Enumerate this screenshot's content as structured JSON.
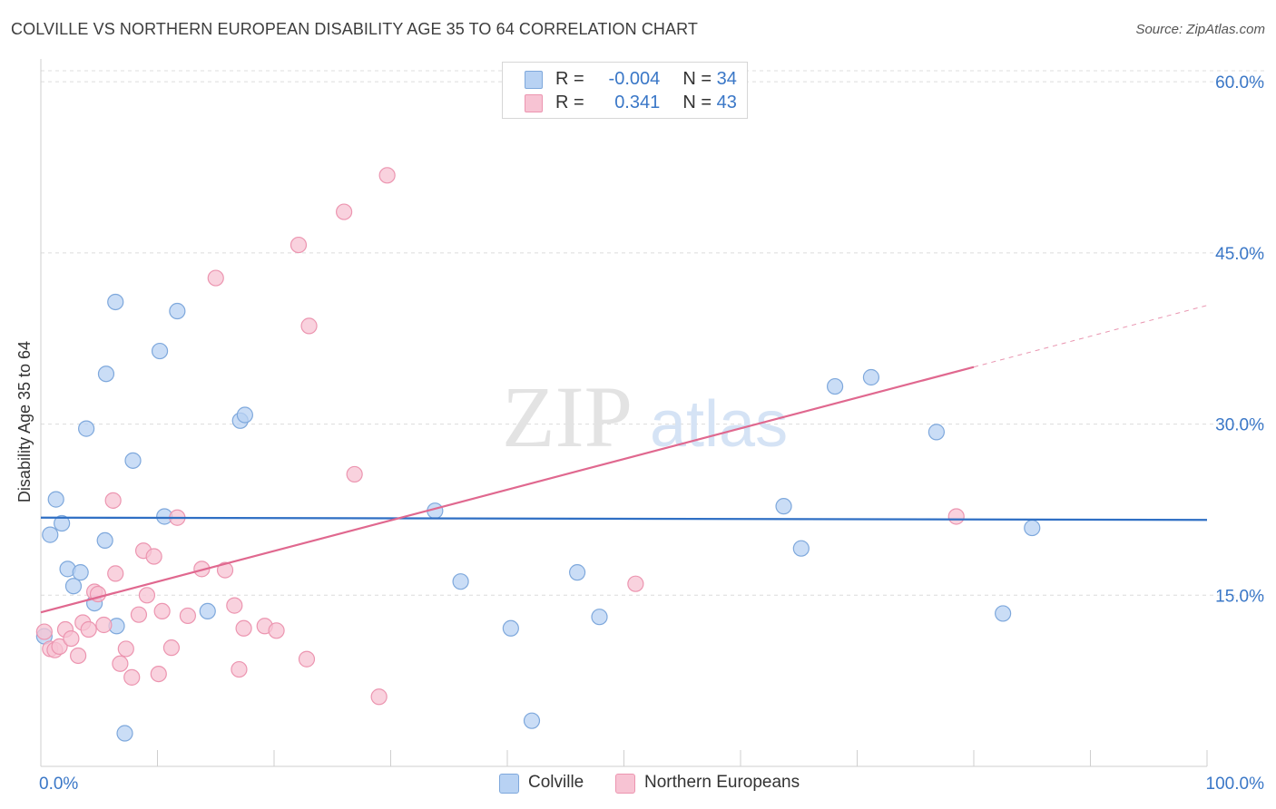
{
  "header": {
    "title": "COLVILLE VS NORTHERN EUROPEAN DISABILITY AGE 35 TO 64 CORRELATION CHART",
    "source": "Source: ZipAtlas.com"
  },
  "legend": {
    "rows": [
      {
        "r_label": "R =",
        "r_value": "-0.004",
        "n_label": "N =",
        "n_value": "34"
      },
      {
        "r_label": "R =",
        "r_value": "0.341",
        "n_label": "N =",
        "n_value": "43"
      }
    ]
  },
  "bottom_legend": [
    "Colville",
    "Northern Europeans"
  ],
  "watermark": {
    "zip": "ZIP",
    "atlas": "atlas"
  },
  "colors": {
    "blue_fill": "#b8d2f3",
    "blue_stroke": "#7ea8dc",
    "blue_line": "#2f6fc4",
    "pink_fill": "#f7c3d3",
    "pink_stroke": "#ec95b0",
    "pink_line": "#e0688f",
    "tick_label": "#3a77c7",
    "grid": "#dcdcdc"
  },
  "chart_data": {
    "type": "scatter",
    "title": "COLVILLE VS NORTHERN EUROPEAN DISABILITY AGE 35 TO 64 CORRELATION CHART",
    "xlabel": "",
    "ylabel": "Disability Age 35 to 64",
    "xlim": [
      0,
      100
    ],
    "ylim": [
      0,
      62
    ],
    "x_tick_labels": [
      "0.0%",
      "100.0%"
    ],
    "y_ticks": [
      15,
      30,
      45,
      60
    ],
    "y_tick_labels": [
      "15.0%",
      "30.0%",
      "45.0%",
      "60.0%"
    ],
    "grid": "horizontal dashed",
    "series": [
      {
        "name": "Colville",
        "r": -0.004,
        "n": 34,
        "points": [
          [
            0.3,
            11.4
          ],
          [
            0.8,
            20.3
          ],
          [
            1.3,
            23.4
          ],
          [
            1.8,
            21.3
          ],
          [
            2.3,
            17.3
          ],
          [
            2.8,
            15.8
          ],
          [
            3.4,
            17.0
          ],
          [
            3.9,
            29.6
          ],
          [
            4.6,
            14.3
          ],
          [
            5.5,
            19.8
          ],
          [
            5.6,
            34.4
          ],
          [
            6.4,
            40.7
          ],
          [
            6.5,
            12.3
          ],
          [
            7.2,
            2.9
          ],
          [
            7.9,
            26.8
          ],
          [
            10.2,
            36.4
          ],
          [
            10.6,
            21.9
          ],
          [
            11.7,
            39.9
          ],
          [
            14.3,
            13.6
          ],
          [
            17.1,
            30.3
          ],
          [
            17.5,
            30.8
          ],
          [
            33.8,
            22.4
          ],
          [
            36.0,
            16.2
          ],
          [
            40.3,
            12.1
          ],
          [
            42.1,
            4.0
          ],
          [
            46.0,
            17.0
          ],
          [
            47.9,
            13.1
          ],
          [
            63.7,
            22.8
          ],
          [
            65.2,
            19.1
          ],
          [
            68.1,
            33.3
          ],
          [
            71.2,
            34.1
          ],
          [
            76.8,
            29.3
          ],
          [
            82.5,
            13.4
          ],
          [
            85.0,
            20.9
          ]
        ],
        "trend": {
          "x": [
            0,
            100
          ],
          "y": [
            21.8,
            21.6
          ]
        }
      },
      {
        "name": "Northern Europeans",
        "r": 0.341,
        "n": 43,
        "points": [
          [
            0.3,
            11.8
          ],
          [
            0.8,
            10.3
          ],
          [
            1.2,
            10.2
          ],
          [
            1.6,
            10.5
          ],
          [
            2.1,
            12.0
          ],
          [
            2.6,
            11.2
          ],
          [
            3.2,
            9.7
          ],
          [
            3.6,
            12.6
          ],
          [
            4.1,
            12.0
          ],
          [
            4.6,
            15.3
          ],
          [
            4.9,
            15.1
          ],
          [
            5.4,
            12.4
          ],
          [
            6.2,
            23.3
          ],
          [
            6.4,
            16.9
          ],
          [
            6.8,
            9.0
          ],
          [
            7.3,
            10.3
          ],
          [
            7.8,
            7.8
          ],
          [
            8.4,
            13.3
          ],
          [
            8.8,
            18.9
          ],
          [
            9.1,
            15.0
          ],
          [
            9.7,
            18.4
          ],
          [
            10.1,
            8.1
          ],
          [
            10.4,
            13.6
          ],
          [
            11.2,
            10.4
          ],
          [
            11.7,
            21.8
          ],
          [
            12.6,
            13.2
          ],
          [
            13.8,
            17.3
          ],
          [
            15.0,
            42.8
          ],
          [
            15.8,
            17.2
          ],
          [
            16.6,
            14.1
          ],
          [
            17.0,
            8.5
          ],
          [
            17.4,
            12.1
          ],
          [
            19.2,
            12.3
          ],
          [
            20.2,
            11.9
          ],
          [
            22.1,
            45.7
          ],
          [
            22.8,
            9.4
          ],
          [
            23.0,
            38.6
          ],
          [
            26.0,
            48.6
          ],
          [
            26.9,
            25.6
          ],
          [
            29.0,
            6.1
          ],
          [
            29.7,
            51.8
          ],
          [
            51.0,
            16.0
          ],
          [
            78.5,
            21.9
          ]
        ],
        "trend": {
          "x": [
            0,
            80
          ],
          "y": [
            13.5,
            35.0
          ]
        },
        "trend_extension": {
          "x": [
            80,
            100
          ],
          "y": [
            35.0,
            40.4
          ]
        }
      }
    ]
  }
}
